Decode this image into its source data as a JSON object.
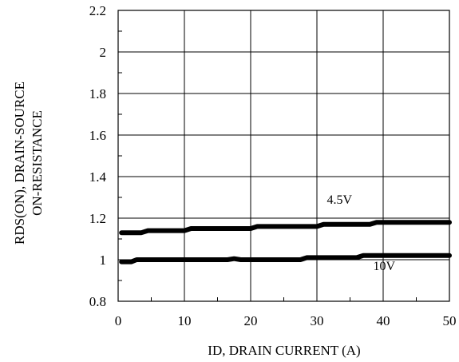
{
  "chart_data": {
    "type": "line",
    "title": "",
    "xlabel": "ID, DRAIN CURRENT (A)",
    "ylabel_lines": [
      "RDS(ON),  DRAIN-SOURCE",
      "ON-RESISTANCE"
    ],
    "xlim": [
      0,
      50
    ],
    "ylim": [
      0.8,
      2.2
    ],
    "x_ticks": [
      0,
      10,
      20,
      30,
      40,
      50
    ],
    "x_tick_labels": [
      "0",
      "10",
      "20",
      "30",
      "40",
      "50"
    ],
    "y_ticks": [
      0.8,
      1,
      1.2,
      1.4,
      1.6,
      1.8,
      2,
      2.2
    ],
    "y_tick_labels": [
      "0.8",
      "1",
      "1.2",
      "1.4",
      "1.6",
      "1.8",
      "2",
      "2.2"
    ],
    "grid": true,
    "series": [
      {
        "name": "4.5V",
        "x": [
          0.5,
          3.5,
          4.5,
          10,
          11,
          20,
          21,
          30,
          31,
          38,
          39,
          50
        ],
        "y": [
          1.13,
          1.13,
          1.14,
          1.14,
          1.15,
          1.15,
          1.16,
          1.16,
          1.17,
          1.17,
          1.18,
          1.18
        ]
      },
      {
        "name": "10V",
        "x": [
          0.5,
          2,
          2.8,
          16.5,
          17.5,
          18.5,
          27.5,
          28.5,
          36,
          37,
          50
        ],
        "y": [
          0.99,
          0.99,
          1.0,
          1.0,
          1.005,
          1.0,
          1.0,
          1.01,
          1.01,
          1.02,
          1.02
        ]
      }
    ],
    "series_label_anchor": [
      {
        "x": 31.5,
        "y": 1.27
      },
      {
        "x": 38.5,
        "y": 0.95
      }
    ]
  }
}
